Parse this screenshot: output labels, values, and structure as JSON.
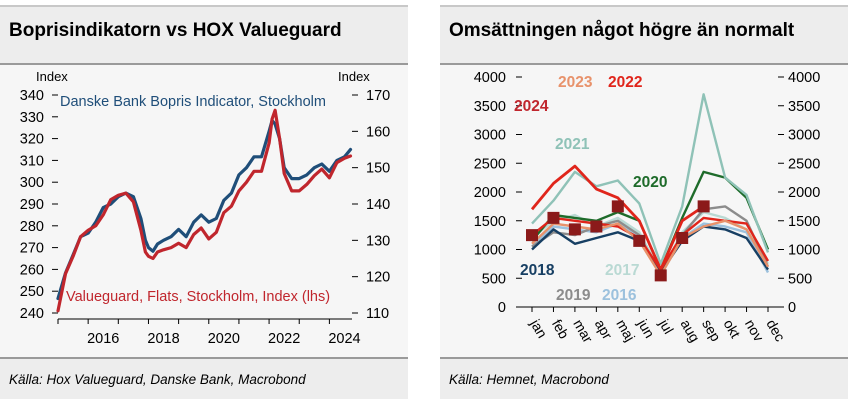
{
  "left": {
    "title": "Boprisindikatorn vs HOX Valueguard",
    "source": "Källa: Hox Valueguard, Danske Bank, Macrobond",
    "chart_data": {
      "type": "line",
      "ylabel_left": "Index",
      "ylabel_right": "Index",
      "x_ticks": [
        "2016",
        "2018",
        "2020",
        "2022",
        "2024"
      ],
      "y_left_ticks": [
        240,
        250,
        260,
        270,
        280,
        290,
        300,
        310,
        320,
        330,
        340
      ],
      "y_right_ticks": [
        110,
        120,
        130,
        140,
        150,
        160,
        170
      ],
      "ylim_left": [
        240,
        340
      ],
      "ylim_right": [
        110,
        170
      ],
      "xlim": [
        2015.0,
        2024.75
      ],
      "series": [
        {
          "name": "Danske Bank Bopris Indicator, Stockholm",
          "axis": "right",
          "color": "#1f4e79",
          "x": [
            2015.0,
            2015.25,
            2015.5,
            2015.75,
            2016.0,
            2016.25,
            2016.5,
            2016.75,
            2017.0,
            2017.25,
            2017.5,
            2017.75,
            2017.9,
            2018.0,
            2018.15,
            2018.3,
            2018.5,
            2018.75,
            2019.0,
            2019.25,
            2019.5,
            2019.75,
            2020.0,
            2020.25,
            2020.5,
            2020.75,
            2021.0,
            2021.25,
            2021.5,
            2021.75,
            2022.0,
            2022.1,
            2022.2,
            2022.35,
            2022.5,
            2022.75,
            2023.0,
            2023.25,
            2023.5,
            2023.75,
            2024.0,
            2024.25,
            2024.5,
            2024.7
          ],
          "values": [
            114,
            121,
            126,
            131,
            132,
            135,
            139,
            140,
            142,
            143,
            142,
            136,
            130,
            128,
            127,
            129,
            130,
            131,
            133,
            131,
            135,
            137,
            135,
            136,
            141,
            143,
            148,
            150,
            153,
            153,
            160,
            163,
            162,
            158,
            150,
            147,
            147,
            148,
            150,
            151,
            149,
            152,
            153,
            155
          ]
        },
        {
          "name": "Valueguard, Flats, Stockholm, Index (lhs)",
          "axis": "left",
          "color": "#c0262d",
          "x": [
            2015.0,
            2015.25,
            2015.5,
            2015.75,
            2016.0,
            2016.25,
            2016.5,
            2016.75,
            2017.0,
            2017.25,
            2017.5,
            2017.75,
            2017.9,
            2018.0,
            2018.15,
            2018.3,
            2018.5,
            2018.75,
            2019.0,
            2019.25,
            2019.5,
            2019.75,
            2020.0,
            2020.25,
            2020.5,
            2020.75,
            2021.0,
            2021.25,
            2021.5,
            2021.75,
            2022.0,
            2022.1,
            2022.2,
            2022.35,
            2022.5,
            2022.75,
            2023.0,
            2023.25,
            2023.5,
            2023.75,
            2024.0,
            2024.25,
            2024.5,
            2024.7
          ],
          "values": [
            241,
            258,
            266,
            275,
            278,
            280,
            285,
            292,
            294,
            295,
            291,
            278,
            268,
            266,
            265,
            268,
            269,
            270,
            272,
            270,
            276,
            279,
            274,
            277,
            286,
            289,
            296,
            300,
            305,
            305,
            318,
            329,
            333,
            320,
            304,
            296,
            296,
            299,
            303,
            306,
            302,
            309,
            311,
            312
          ]
        }
      ]
    }
  },
  "right": {
    "title": "Omsättningen något högre än normalt",
    "source": "Källa: Hemnet, Macrobond",
    "chart_data": {
      "type": "line",
      "categories": [
        "jan",
        "feb",
        "mar",
        "apr",
        "maj",
        "jun",
        "jul",
        "aug",
        "sep",
        "okt",
        "nov",
        "dec"
      ],
      "y_ticks": [
        0,
        500,
        1000,
        1500,
        2000,
        2500,
        3000,
        3500,
        4000
      ],
      "ylim": [
        0,
        4000
      ],
      "series": [
        {
          "name": "2024",
          "color": "#e0251b",
          "label_color": "#c0262d",
          "values": [
            1700,
            2150,
            2450,
            2050,
            1900,
            1500,
            650,
            1500,
            1750,
            null,
            null,
            null
          ]
        },
        {
          "name": "2023",
          "color": "#e8926b",
          "label_color": "#e8926b",
          "values": [
            1100,
            1450,
            1400,
            1350,
            1450,
            1150,
            550,
            1200,
            1400,
            1500,
            1350,
            700
          ]
        },
        {
          "name": "2022",
          "color": "#e0251b",
          "label_color": "#e0251b",
          "values": [
            1250,
            1550,
            1500,
            1450,
            1400,
            1200,
            650,
            1250,
            1550,
            1500,
            1450,
            800
          ]
        },
        {
          "name": "2021",
          "color": "#8fc2b7",
          "label_color": "#8fc2b7",
          "values": [
            1450,
            1850,
            2350,
            2100,
            2200,
            1800,
            750,
            1750,
            3700,
            2250,
            1950,
            950
          ]
        },
        {
          "name": "2020",
          "color": "#1e6b2a",
          "label_color": "#1e6b2a",
          "values": [
            1150,
            1600,
            1550,
            1500,
            1650,
            1500,
            650,
            1550,
            2350,
            2250,
            1900,
            1000
          ]
        },
        {
          "name": "2018",
          "color": "#173f63",
          "label_color": "#173f63",
          "values": [
            1000,
            1350,
            1100,
            1200,
            1300,
            1150,
            600,
            1150,
            1400,
            1350,
            1200,
            650
          ]
        },
        {
          "name": "2019",
          "color": "#8c8c8c",
          "label_color": "#8c8c8c",
          "values": [
            1050,
            1300,
            1250,
            1400,
            1500,
            1250,
            550,
            1250,
            1700,
            1750,
            1500,
            700
          ]
        },
        {
          "name": "2017",
          "color": "#b9d9d3",
          "label_color": "#b9d9d3",
          "values": [
            1200,
            1500,
            1600,
            1400,
            1550,
            1300,
            600,
            1300,
            1650,
            1550,
            1350,
            750
          ]
        },
        {
          "name": "2016",
          "color": "#9cc1dd",
          "label_color": "#9cc1dd",
          "values": [
            1050,
            1400,
            1350,
            1300,
            1450,
            1200,
            550,
            1200,
            1450,
            1400,
            1300,
            600
          ]
        }
      ],
      "markers": {
        "color": "#8b1a1a",
        "values": [
          1250,
          1550,
          1350,
          1400,
          1750,
          1150,
          550,
          1200,
          1750,
          null,
          null,
          null
        ]
      }
    }
  }
}
